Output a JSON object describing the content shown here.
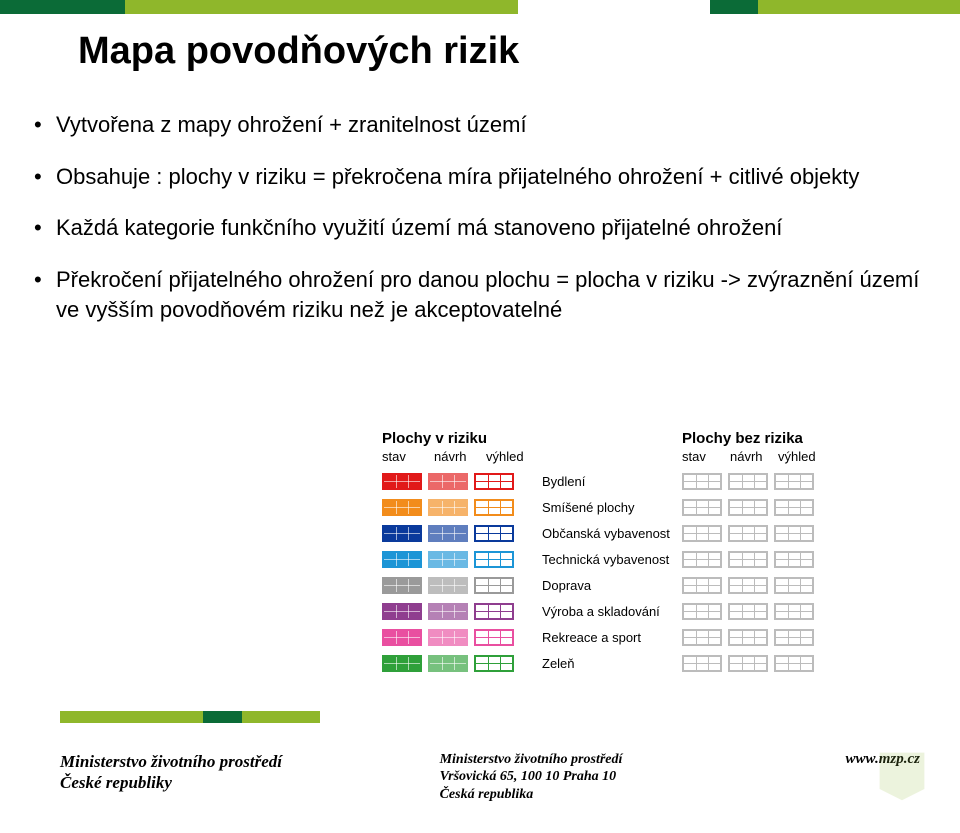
{
  "stripes": {
    "top": [
      {
        "color": "#0b6b37",
        "width_pct": 13
      },
      {
        "color": "#8fb72b",
        "width_pct": 41
      },
      {
        "color": "#ffffff",
        "width_pct": 20
      },
      {
        "color": "#0b6b37",
        "width_pct": 5
      },
      {
        "color": "#8fb72b",
        "width_pct": 21
      }
    ],
    "bottom": [
      {
        "color": "#8fb72b",
        "width_pct": 55
      },
      {
        "color": "#0b6b37",
        "width_pct": 15
      },
      {
        "color": "#8fb72b",
        "width_pct": 30
      }
    ]
  },
  "title": "Mapa povodňových rizik",
  "bullets": [
    "Vytvořena z mapy ohrožení + zranitelnost území",
    "Obsahuje : plochy v riziku = překročena míra přijatelného ohrožení + citlivé objekty",
    "Každá kategorie funkčního využití území má stanoveno přijatelné ohrožení",
    "Překročení přijatelného ohrožení pro danou plochu = plocha v riziku -> zvýraznění území ve vyšším povodňovém riziku než je akceptovatelné"
  ],
  "legend": {
    "header_a": "Plochy v riziku",
    "header_b": "Plochy bez rizika",
    "subheaders": [
      "stav",
      "návrh",
      "výhled"
    ],
    "gray": "#bcbcbc",
    "categories": [
      {
        "label": "Bydlení",
        "color": "#e11919"
      },
      {
        "label": "Smíšené plochy",
        "color": "#f28c1b"
      },
      {
        "label": "Občanská vybavenost",
        "color": "#0a3a9c"
      },
      {
        "label": "Technická vybavenost",
        "color": "#1c95d6"
      },
      {
        "label": "Doprava",
        "color": "#9a9a9a"
      },
      {
        "label": "Výroba a skladování",
        "color": "#8f3e8f"
      },
      {
        "label": "Rekreace a sport",
        "color": "#e94fa0"
      },
      {
        "label": "Zeleň",
        "color": "#2fa03a"
      }
    ]
  },
  "footer": {
    "left_line1": "Ministerstvo životního prostředí",
    "left_line2": "České republiky",
    "mid_line1": "Ministerstvo životního prostředí",
    "mid_line2": "Vršovická 65, 100 10  Praha 10",
    "mid_line3": "Česká republika",
    "right": "www.mzp.cz"
  }
}
